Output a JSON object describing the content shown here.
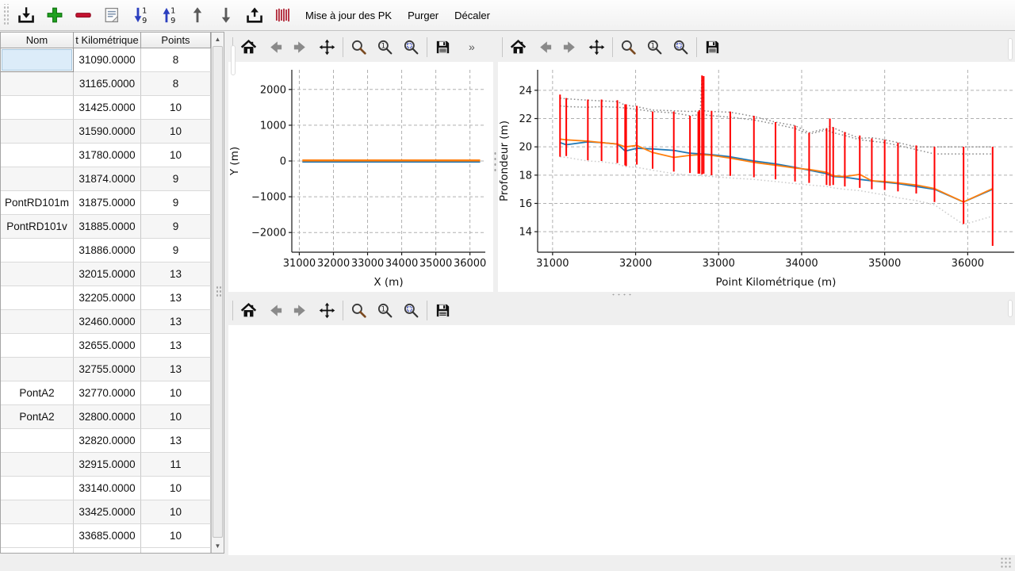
{
  "toolbar": {
    "icon_buttons": [
      {
        "name": "import",
        "icon": "download-icon"
      },
      {
        "name": "add-row",
        "icon": "plus-icon"
      },
      {
        "name": "remove-row",
        "icon": "minus-icon"
      },
      {
        "name": "notes",
        "icon": "note-icon"
      },
      {
        "name": "sort-ascending",
        "icon": "sort-down-1-9-icon"
      },
      {
        "name": "sort-descending",
        "icon": "sort-up-1-9-icon"
      },
      {
        "name": "move-up",
        "icon": "arrow-up-icon"
      },
      {
        "name": "move-down",
        "icon": "arrow-down-icon"
      },
      {
        "name": "export",
        "icon": "upload-icon"
      },
      {
        "name": "profiles",
        "icon": "red-bars-icon"
      }
    ],
    "text_buttons": [
      {
        "name": "update-pk",
        "label": "Mise à jour des PK"
      },
      {
        "name": "purge",
        "label": "Purger"
      },
      {
        "name": "shift",
        "label": "Décaler"
      }
    ]
  },
  "table": {
    "columns": [
      "Nom",
      "t Kilométrique",
      "Points"
    ],
    "selected_cell": {
      "row": 0,
      "col": 0
    },
    "rows": [
      [
        "",
        "31090.0000",
        "8"
      ],
      [
        "",
        "31165.0000",
        "8"
      ],
      [
        "",
        "31425.0000",
        "10"
      ],
      [
        "",
        "31590.0000",
        "10"
      ],
      [
        "",
        "31780.0000",
        "10"
      ],
      [
        "",
        "31874.0000",
        "9"
      ],
      [
        "PontRD101m",
        "31875.0000",
        "9"
      ],
      [
        "PontRD101v",
        "31885.0000",
        "9"
      ],
      [
        "",
        "31886.0000",
        "9"
      ],
      [
        "",
        "32015.0000",
        "13"
      ],
      [
        "",
        "32205.0000",
        "13"
      ],
      [
        "",
        "32460.0000",
        "13"
      ],
      [
        "",
        "32655.0000",
        "13"
      ],
      [
        "",
        "32755.0000",
        "13"
      ],
      [
        "PontA2",
        "32770.0000",
        "10"
      ],
      [
        "PontA2",
        "32800.0000",
        "10"
      ],
      [
        "",
        "32820.0000",
        "13"
      ],
      [
        "",
        "32915.0000",
        "11"
      ],
      [
        "",
        "33140.0000",
        "10"
      ],
      [
        "",
        "33425.0000",
        "10"
      ],
      [
        "",
        "33685.0000",
        "10"
      ]
    ]
  },
  "nav_toolbar": {
    "icons": [
      "home-icon",
      "back-icon",
      "forward-icon",
      "pan-icon",
      "zoom-icon",
      "zoom-one-icon",
      "zoom-select-icon",
      "save-icon"
    ],
    "overflow": "»"
  },
  "chart_data": [
    {
      "type": "line",
      "xlabel": "X (m)",
      "ylabel": "Y (m)",
      "xlim": [
        30780,
        36450
      ],
      "ylim": [
        -2550,
        2550
      ],
      "xticks": [
        31000,
        32000,
        33000,
        34000,
        35000,
        36000
      ],
      "yticks": [
        -2000,
        -1000,
        0,
        1000,
        2000
      ],
      "grid": true,
      "series": [
        {
          "name": "axe-pointille",
          "color": "#cccccc",
          "style": "dotted",
          "x": [
            30950,
            36440
          ],
          "y": [
            0,
            0
          ]
        },
        {
          "name": "trace-bleu",
          "color": "#1f77b4",
          "width": 2,
          "x": [
            31090,
            36300
          ],
          "y": [
            -25,
            -25
          ]
        },
        {
          "name": "trace-orange",
          "color": "#ff7f0e",
          "width": 2.6,
          "x": [
            31090,
            36300
          ],
          "y": [
            15,
            15
          ]
        }
      ]
    },
    {
      "type": "line",
      "xlabel": "Point Kilométrique (m)",
      "ylabel": "Profondeur (m)",
      "xlim": [
        30820,
        36560
      ],
      "ylim": [
        12.55,
        25.45
      ],
      "xticks": [
        31000,
        32000,
        33000,
        34000,
        35000,
        36000
      ],
      "yticks": [
        14,
        16,
        18,
        20,
        22,
        24
      ],
      "grid": true,
      "x": [
        31090,
        31165,
        31425,
        31590,
        31780,
        31874,
        32015,
        32205,
        32460,
        32655,
        32800,
        32915,
        33140,
        33425,
        33685,
        33920,
        34090,
        34300,
        34380,
        34520,
        34700,
        34845,
        35000,
        35160,
        35380,
        35600,
        35950,
        36300
      ],
      "series": [
        {
          "name": "enveloppe-basse",
          "color": "#cccccc",
          "style": "dotted",
          "y": [
            19.3,
            19.25,
            19.0,
            18.95,
            18.8,
            18.6,
            18.55,
            18.35,
            18.1,
            18.0,
            17.95,
            17.9,
            17.8,
            17.7,
            17.55,
            17.4,
            17.3,
            17.2,
            17.1,
            17.0,
            16.9,
            16.75,
            16.6,
            16.4,
            16.2,
            15.9,
            14.5,
            15.1
          ]
        },
        {
          "name": "enveloppe-haute-2",
          "color": "#8a8a8a",
          "style": "dotted",
          "y": [
            22.9,
            22.85,
            22.8,
            22.85,
            22.8,
            22.75,
            22.65,
            22.5,
            22.4,
            22.2,
            22.3,
            22.2,
            22.1,
            21.9,
            21.6,
            21.3,
            20.9,
            21.2,
            21.0,
            20.8,
            20.5,
            20.4,
            20.3,
            20.1,
            19.8,
            19.5,
            19.5,
            19.5
          ]
        },
        {
          "name": "enveloppe-haute-1",
          "color": "#8a8a8a",
          "style": "dotted",
          "x": [
            31090,
            31165,
            31425,
            31590,
            31780,
            31874,
            32015,
            32205,
            32460,
            32655,
            32780,
            32800,
            32820,
            32915,
            33140,
            33425,
            33685,
            33920,
            34090,
            34300,
            34340,
            34380,
            34520,
            34700,
            34845,
            35000,
            35160,
            35380,
            35600,
            35950,
            36300
          ],
          "y": [
            23.45,
            23.4,
            23.3,
            23.25,
            23.2,
            22.95,
            22.85,
            22.6,
            22.55,
            22.5,
            22.55,
            25.05,
            22.55,
            22.5,
            22.45,
            22.15,
            21.75,
            21.5,
            21.0,
            21.3,
            21.45,
            21.35,
            21.0,
            20.6,
            20.65,
            20.5,
            20.3,
            20.0,
            20.0,
            20.0,
            20.0
          ]
        },
        {
          "name": "profondeur-bleu",
          "color": "#1f77b4",
          "width": 1.8,
          "y": [
            20.3,
            20.15,
            20.35,
            20.3,
            20.2,
            19.7,
            19.9,
            19.85,
            19.75,
            19.55,
            19.5,
            19.45,
            19.3,
            19.0,
            18.8,
            18.55,
            18.35,
            18.1,
            17.9,
            17.85,
            17.7,
            17.6,
            17.5,
            17.4,
            17.2,
            17.0,
            16.1,
            17.0
          ]
        },
        {
          "name": "profondeur-orange",
          "color": "#ff7f0e",
          "width": 1.8,
          "y": [
            20.55,
            20.5,
            20.4,
            20.3,
            20.2,
            20.0,
            20.1,
            19.6,
            19.25,
            19.4,
            19.45,
            19.4,
            19.2,
            18.9,
            18.7,
            18.5,
            18.4,
            18.2,
            17.95,
            17.9,
            18.05,
            17.6,
            17.55,
            17.45,
            17.3,
            17.05,
            16.1,
            17.05
          ]
        }
      ],
      "bars": {
        "name": "sondages",
        "color": "#ff0000",
        "data": [
          [
            31090,
            19.3,
            23.7
          ],
          [
            31165,
            19.35,
            23.45
          ],
          [
            31425,
            19.05,
            23.35
          ],
          [
            31590,
            19.0,
            23.35
          ],
          [
            31780,
            18.85,
            23.3
          ],
          [
            31874,
            18.7,
            23.0
          ],
          [
            31875,
            18.7,
            23.0
          ],
          [
            31885,
            18.65,
            23.0
          ],
          [
            31886,
            18.65,
            23.0
          ],
          [
            32015,
            18.75,
            22.9
          ],
          [
            32205,
            18.45,
            22.5
          ],
          [
            32460,
            18.25,
            22.5
          ],
          [
            32655,
            18.15,
            22.2
          ],
          [
            32755,
            18.1,
            22.5
          ],
          [
            32770,
            18.1,
            22.6
          ],
          [
            32800,
            18.05,
            25.05
          ],
          [
            32820,
            18.1,
            25.0
          ],
          [
            32915,
            18.0,
            22.55
          ],
          [
            33140,
            17.95,
            22.5
          ],
          [
            33425,
            17.85,
            22.2
          ],
          [
            33685,
            17.7,
            21.75
          ],
          [
            33920,
            17.55,
            21.5
          ],
          [
            34090,
            17.45,
            21.0
          ],
          [
            34300,
            17.3,
            21.3
          ],
          [
            34340,
            17.25,
            22.0
          ],
          [
            34380,
            17.3,
            21.4
          ],
          [
            34520,
            17.2,
            21.05
          ],
          [
            34700,
            17.1,
            20.8
          ],
          [
            34845,
            17.0,
            20.6
          ],
          [
            35000,
            16.95,
            20.5
          ],
          [
            35160,
            16.85,
            20.3
          ],
          [
            35380,
            16.7,
            20.1
          ],
          [
            35600,
            16.1,
            20.0
          ],
          [
            35950,
            14.55,
            20.0
          ],
          [
            36300,
            13.0,
            20.0
          ]
        ]
      }
    }
  ],
  "colors": {
    "accent_blue": "#1f77b4",
    "accent_orange": "#ff7f0e",
    "bar_red": "#ff0000",
    "grid_gray": "#b0b0b0",
    "window_bg": "#efefef"
  }
}
